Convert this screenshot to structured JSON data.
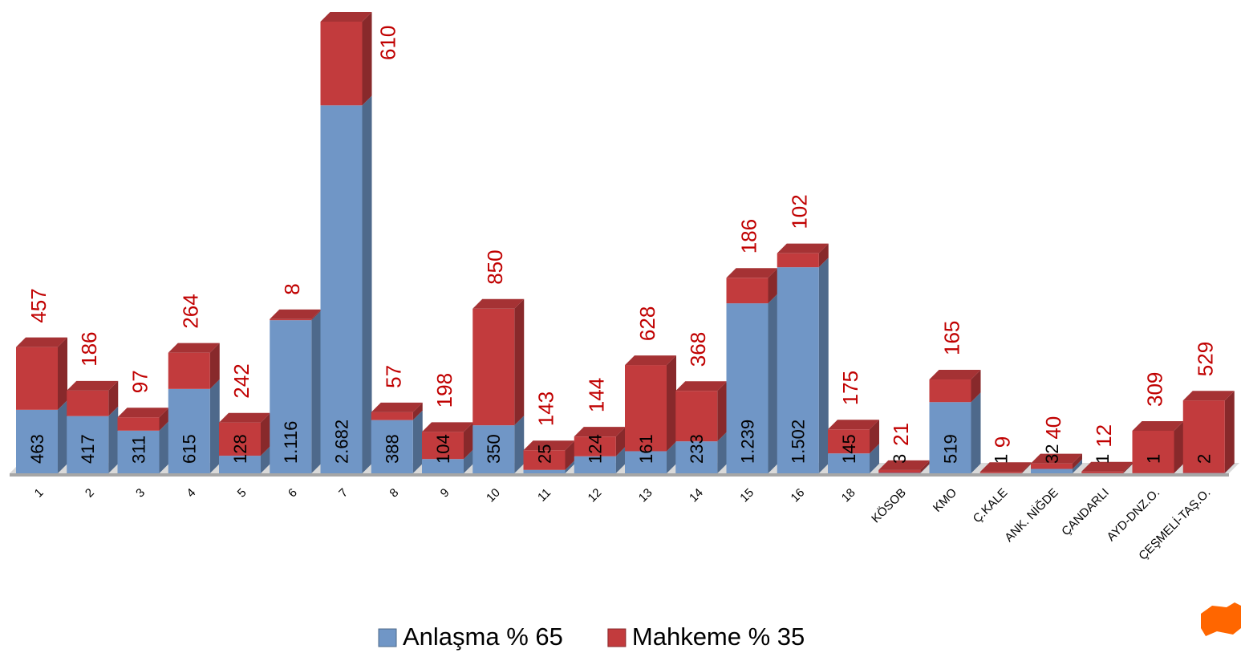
{
  "chart_data": {
    "type": "bar",
    "categories": [
      "1",
      "2",
      "3",
      "4",
      "5",
      "6",
      "7",
      "8",
      "9",
      "10",
      "11",
      "12",
      "13",
      "14",
      "15",
      "16",
      "18",
      "KÖSOB",
      "KMO",
      "Ç.KALE",
      "ANK. NİĞDE",
      "ÇANDARLI",
      "AYD-DNZ.O.",
      "ÇEŞMELİ-TAŞ.O."
    ],
    "stacked": true,
    "series": [
      {
        "name": "Anlaşma % 65",
        "color": "#7096c6",
        "values": [
          463,
          417,
          311,
          615,
          128,
          1116,
          2682,
          388,
          104,
          350,
          25,
          124,
          161,
          233,
          1239,
          1502,
          145,
          3,
          519,
          1,
          32,
          1,
          1,
          2
        ],
        "value_labels": [
          "463",
          "417",
          "311",
          "615",
          "128",
          "1.116",
          "2.682",
          "388",
          "104",
          "350",
          "25",
          "124",
          "161",
          "233",
          "1.239",
          "1.502",
          "145",
          "3",
          "519",
          "1",
          "32",
          "1",
          "1",
          "2"
        ]
      },
      {
        "name": "Mahkeme % 35",
        "color": "#c23b3d",
        "values": [
          457,
          186,
          97,
          264,
          242,
          8,
          610,
          57,
          198,
          850,
          143,
          144,
          628,
          368,
          186,
          102,
          175,
          21,
          165,
          9,
          40,
          12,
          309,
          529
        ]
      }
    ]
  }
}
